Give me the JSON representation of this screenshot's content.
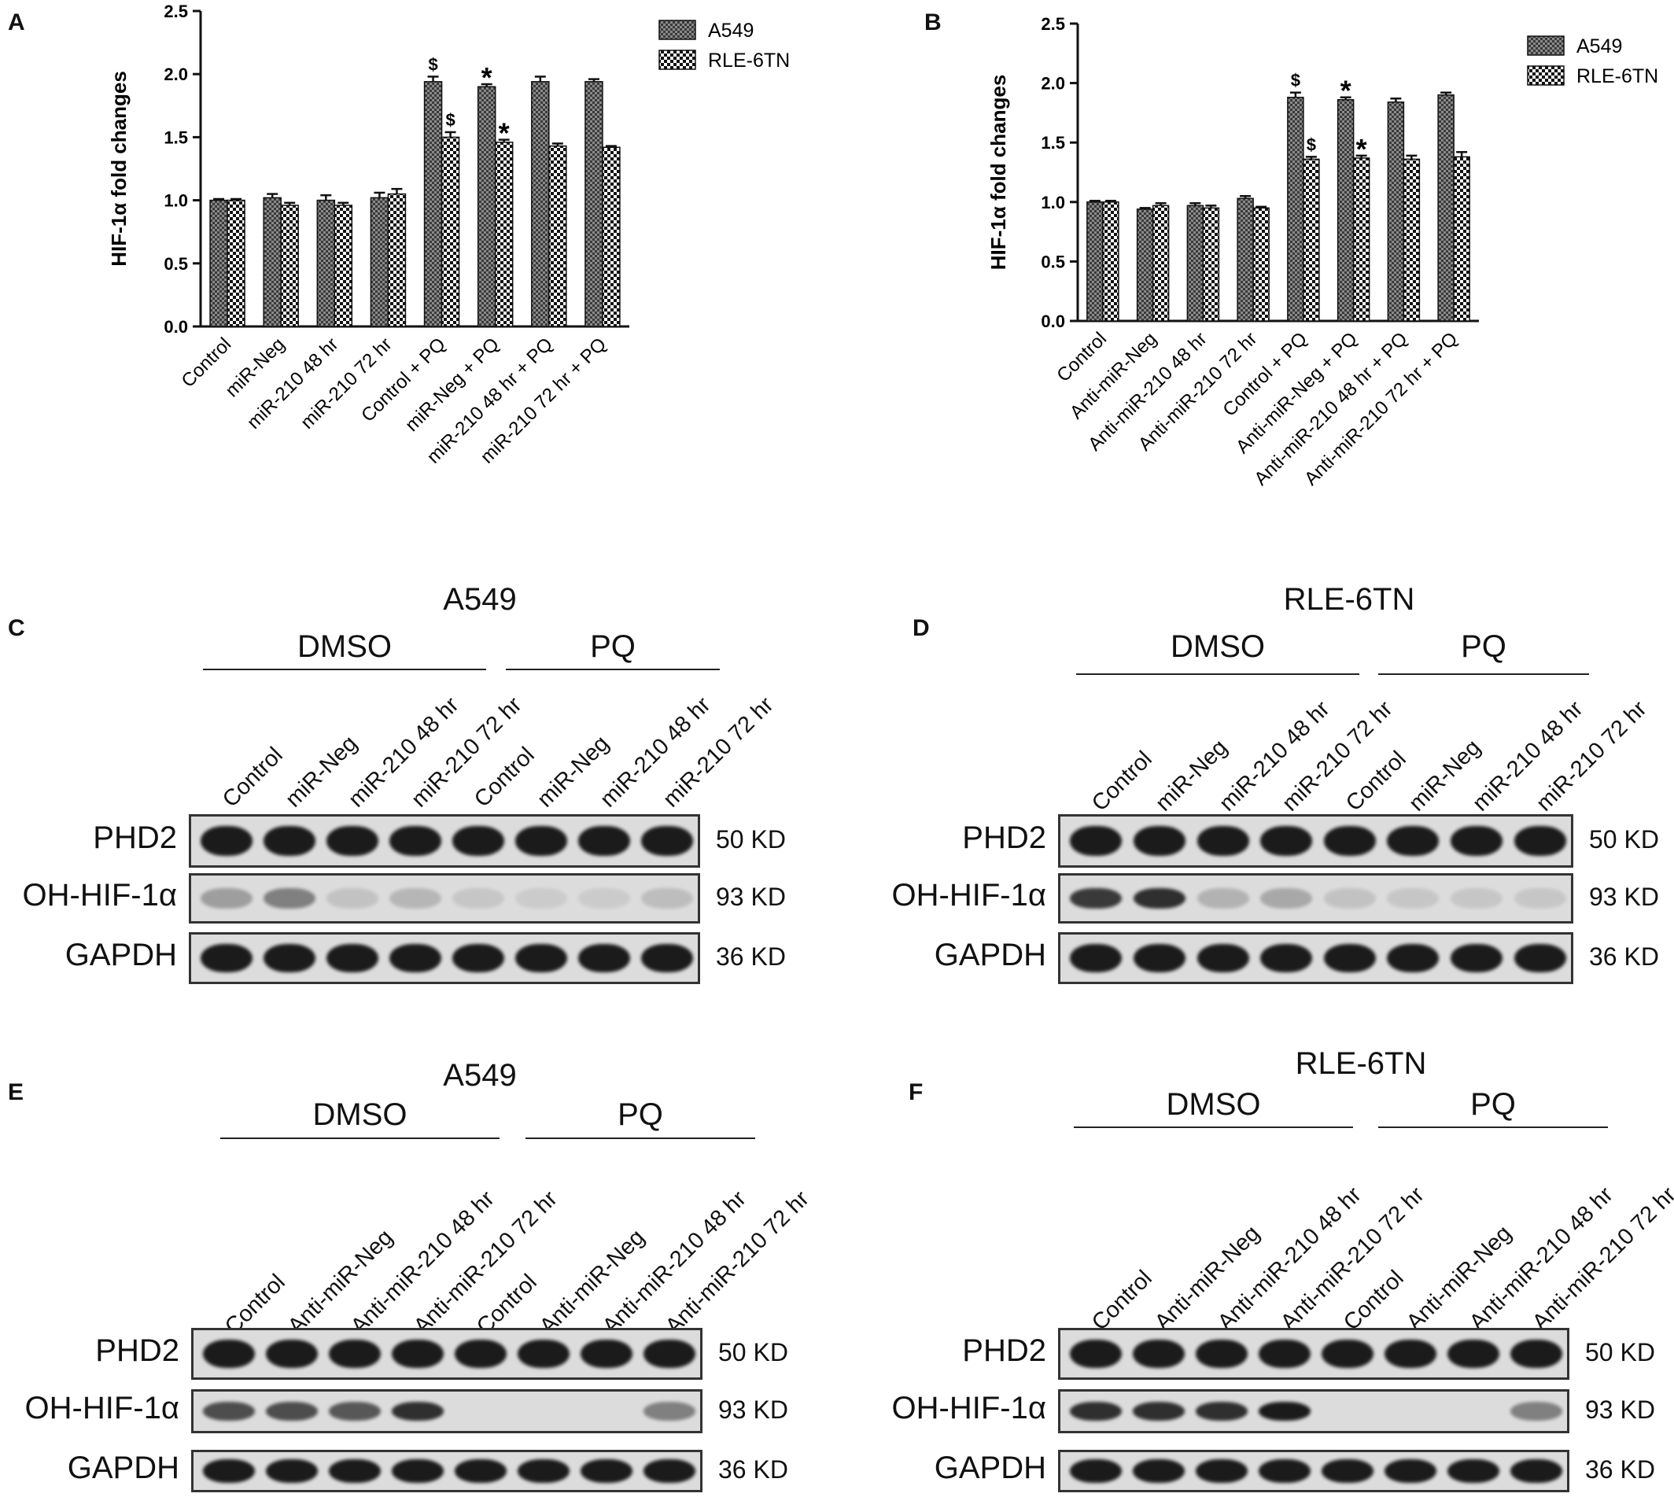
{
  "panels": {
    "A": "A",
    "B": "B",
    "C": "C",
    "D": "D",
    "E": "E",
    "F": "F"
  },
  "colors": {
    "a549_fill": "#8a8a8a",
    "rle_fill": "#ffffff",
    "band": "#111111",
    "blot_bg": "#dcdcdc"
  },
  "chart_data": [
    {
      "panel": "A",
      "type": "bar",
      "ylabel": "HIF-1α fold changes",
      "ylim": [
        0,
        2.5
      ],
      "yticks": [
        "0.0",
        "0.5",
        "1.0",
        "1.5",
        "2.0",
        "2.5"
      ],
      "categories": [
        "Control",
        "miR-Neg",
        "miR-210 48 hr",
        "miR-210 72 hr",
        "Control + PQ",
        "miR-Neg + PQ",
        "miR-210 48 hr + PQ",
        "miR-210 72 hr + PQ"
      ],
      "series": [
        {
          "name": "A549",
          "values": [
            1.0,
            1.02,
            1.0,
            1.02,
            1.94,
            1.9,
            1.94,
            1.94
          ],
          "errors": [
            0.01,
            0.03,
            0.04,
            0.04,
            0.04,
            0.02,
            0.04,
            0.02
          ]
        },
        {
          "name": "RLE-6TN",
          "values": [
            1.0,
            0.96,
            0.96,
            1.05,
            1.5,
            1.46,
            1.43,
            1.42
          ],
          "errors": [
            0.01,
            0.02,
            0.02,
            0.04,
            0.04,
            0.02,
            0.02,
            0.01
          ]
        }
      ],
      "annotations": [
        {
          "category": 4,
          "series": 0,
          "text": "$"
        },
        {
          "category": 4,
          "series": 1,
          "text": "$"
        },
        {
          "category": 5,
          "series": 0,
          "text": "*"
        },
        {
          "category": 5,
          "series": 1,
          "text": "*"
        }
      ],
      "legend": "top-right"
    },
    {
      "panel": "B",
      "type": "bar",
      "ylabel": "HIF-1α fold changes",
      "ylim": [
        0,
        2.5
      ],
      "yticks": [
        "0.0",
        "0.5",
        "1.0",
        "1.5",
        "2.0",
        "2.5"
      ],
      "categories": [
        "Control",
        "Anti-miR-Neg",
        "Anti-miR-210 48 hr",
        "Anti-miR-210 72 hr",
        "Control + PQ",
        "Anti-miR-Neg + PQ",
        "Anti-miR-210 48 hr + PQ",
        "Anti-miR-210 72 hr + PQ"
      ],
      "series": [
        {
          "name": "A549",
          "values": [
            1.0,
            0.94,
            0.97,
            1.03,
            1.88,
            1.86,
            1.84,
            1.9
          ],
          "errors": [
            0.01,
            0.01,
            0.02,
            0.02,
            0.04,
            0.02,
            0.03,
            0.02
          ]
        },
        {
          "name": "RLE-6TN",
          "values": [
            1.0,
            0.97,
            0.95,
            0.95,
            1.36,
            1.37,
            1.36,
            1.38
          ],
          "errors": [
            0.01,
            0.02,
            0.02,
            0.01,
            0.02,
            0.02,
            0.03,
            0.04
          ]
        }
      ],
      "annotations": [
        {
          "category": 4,
          "series": 0,
          "text": "$"
        },
        {
          "category": 4,
          "series": 1,
          "text": "$"
        },
        {
          "category": 5,
          "series": 0,
          "text": "*"
        },
        {
          "category": 5,
          "series": 1,
          "text": "*"
        }
      ],
      "legend": "top-right"
    }
  ],
  "blots": {
    "C": {
      "title": "A549",
      "group1": "DMSO",
      "group2": "PQ",
      "lanes": [
        "Control",
        "miR-Neg",
        "miR-210 48 hr",
        "miR-210 72 hr",
        "Control",
        "miR-Neg",
        "miR-210 48 hr",
        "miR-210 72 hr"
      ],
      "proteins": [
        "PHD2",
        "OH-HIF-1α",
        "GAPDH"
      ],
      "kd": [
        "50 KD",
        "93 KD",
        "36 KD"
      ],
      "intensity": [
        [
          0.95,
          0.95,
          0.95,
          0.95,
          0.95,
          0.95,
          0.95,
          0.95
        ],
        [
          0.3,
          0.45,
          0.12,
          0.18,
          0.1,
          0.08,
          0.08,
          0.15
        ],
        [
          0.95,
          0.95,
          0.95,
          0.95,
          0.95,
          0.95,
          0.95,
          0.95
        ]
      ]
    },
    "D": {
      "title": "RLE-6TN",
      "group1": "DMSO",
      "group2": "PQ",
      "lanes": [
        "Control",
        "miR-Neg",
        "miR-210 48 hr",
        "miR-210 72 hr",
        "Control",
        "miR-Neg",
        "miR-210 48 hr",
        "miR-210 72 hr"
      ],
      "proteins": [
        "PHD2",
        "OH-HIF-1α",
        "GAPDH"
      ],
      "kd": [
        "50 KD",
        "93 KD",
        "36 KD"
      ],
      "intensity": [
        [
          0.95,
          0.95,
          0.95,
          0.95,
          0.95,
          0.95,
          0.95,
          0.95
        ],
        [
          0.8,
          0.85,
          0.2,
          0.25,
          0.12,
          0.1,
          0.1,
          0.1
        ],
        [
          0.95,
          0.95,
          0.95,
          0.95,
          0.95,
          0.95,
          0.95,
          0.95
        ]
      ]
    },
    "E": {
      "title": "A549",
      "group1": "DMSO",
      "group2": "PQ",
      "lanes": [
        "Control",
        "Anti-miR-Neg",
        "Anti-miR-210 48 hr",
        "Anti-miR-210 72 hr",
        "Control",
        "Anti-miR-Neg",
        "Anti-miR-210 48 hr",
        "Anti-miR-210 72 hr"
      ],
      "proteins": [
        "PHD2",
        "OH-HIF-1α",
        "GAPDH"
      ],
      "kd": [
        "50 KD",
        "93 KD",
        "36 KD"
      ],
      "intensity": [
        [
          0.95,
          0.95,
          0.95,
          0.95,
          0.95,
          0.95,
          0.95,
          0.95
        ],
        [
          0.7,
          0.7,
          0.65,
          0.85,
          0.0,
          0.0,
          0.0,
          0.45
        ],
        [
          0.95,
          0.95,
          0.95,
          0.95,
          0.95,
          0.95,
          0.95,
          0.95
        ]
      ]
    },
    "F": {
      "title": "RLE-6TN",
      "group1": "DMSO",
      "group2": "PQ",
      "lanes": [
        "Control",
        "Anti-miR-Neg",
        "Anti-miR-210 48 hr",
        "Anti-miR-210 72 hr",
        "Control",
        "Anti-miR-Neg",
        "Anti-miR-210 48 hr",
        "Anti-miR-210 72 hr"
      ],
      "proteins": [
        "PHD2",
        "OH-HIF-1α",
        "GAPDH"
      ],
      "kd": [
        "50 KD",
        "93 KD",
        "36 KD"
      ],
      "intensity": [
        [
          0.95,
          0.95,
          0.95,
          0.95,
          0.95,
          0.95,
          0.95,
          0.95
        ],
        [
          0.85,
          0.85,
          0.85,
          0.95,
          0.0,
          0.0,
          0.0,
          0.45
        ],
        [
          0.95,
          0.95,
          0.95,
          0.95,
          0.95,
          0.95,
          0.95,
          0.95
        ]
      ]
    }
  }
}
